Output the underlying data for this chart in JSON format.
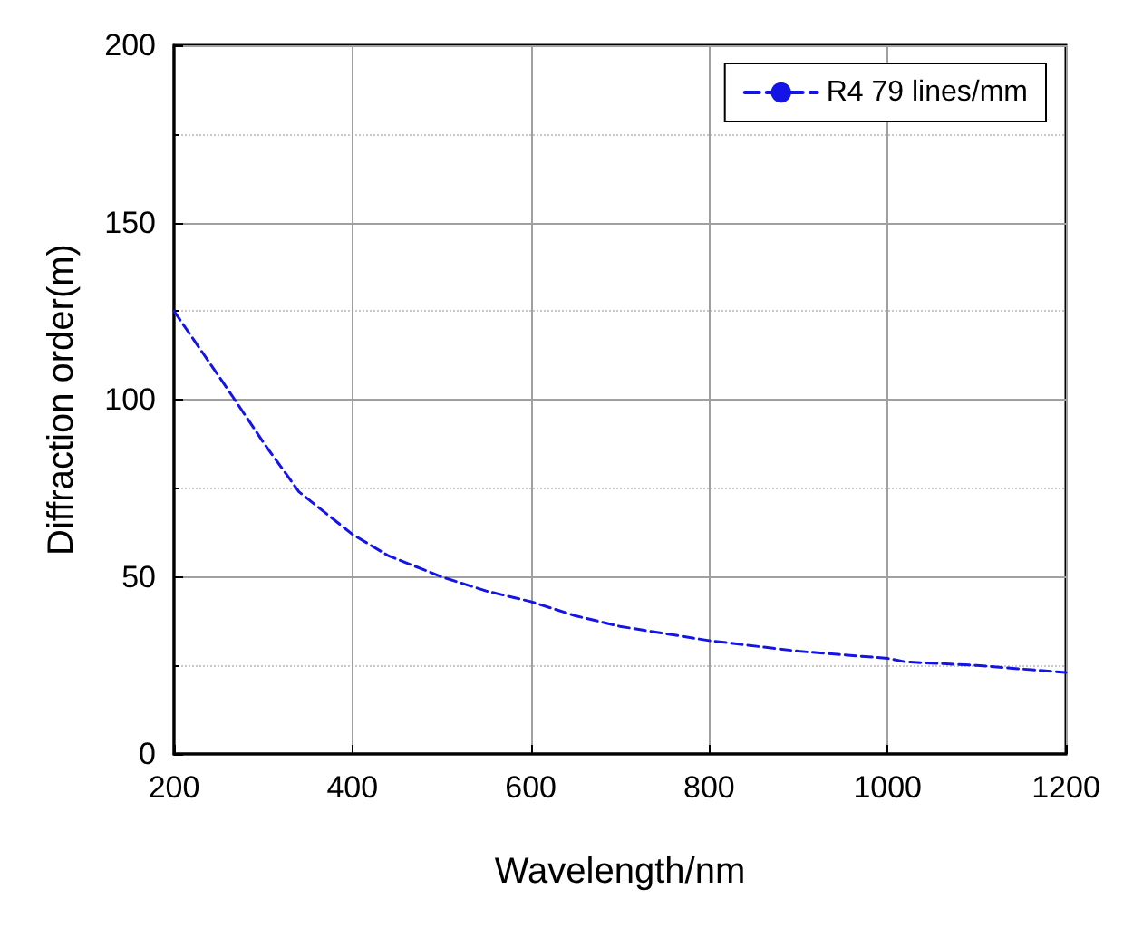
{
  "chart_data": {
    "type": "line",
    "xlabel": "Wavelength/nm",
    "ylabel": "Diffraction order(m)",
    "x": [
      200,
      230,
      260,
      300,
      340,
      370,
      400,
      440,
      500,
      550,
      600,
      650,
      700,
      750,
      800,
      900,
      1000,
      1020,
      1100,
      1200
    ],
    "series": [
      {
        "name": "R4 79 lines/mm",
        "color": "#1414e6",
        "values": [
          125,
          114,
          103,
          88,
          74,
          68,
          62,
          56,
          50,
          46,
          43,
          39,
          36,
          34,
          32,
          29,
          27,
          26,
          25,
          23
        ]
      }
    ],
    "xlim": [
      200,
      1200
    ],
    "xticks": [
      200,
      400,
      600,
      800,
      1000,
      1200
    ],
    "ylim": [
      0,
      200
    ],
    "yticks": [
      0,
      50,
      100,
      150,
      200
    ],
    "grid": true,
    "legend": "top right",
    "marker": "none",
    "line_style": "dashed"
  }
}
